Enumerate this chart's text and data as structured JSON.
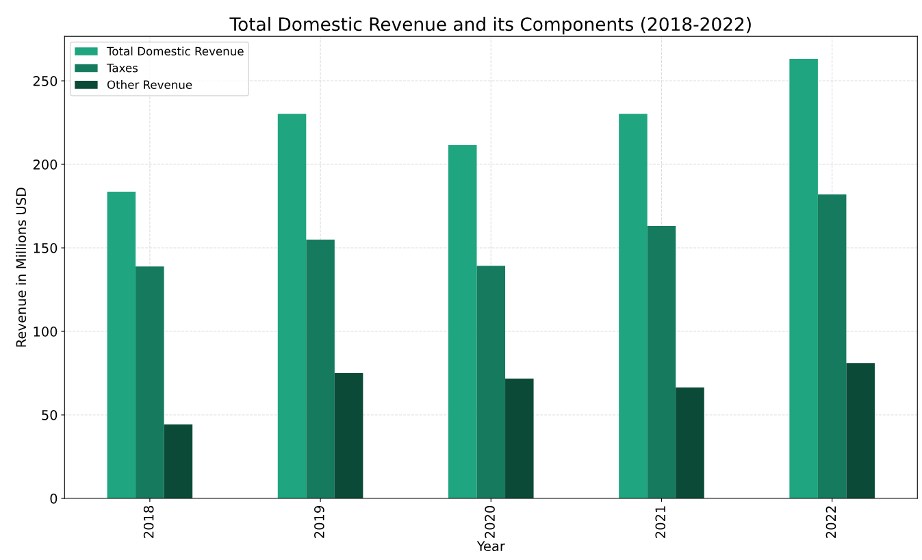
{
  "chart_data": {
    "type": "bar",
    "title": "Total Domestic Revenue and its Components (2018-2022)",
    "xlabel": "Year",
    "ylabel": "Revenue in Millions USD",
    "categories": [
      "2018",
      "2019",
      "2020",
      "2021",
      "2022"
    ],
    "series": [
      {
        "name": "Total Domestic Revenue",
        "color": "#1fa57f",
        "values": [
          183.6,
          230.3,
          211.5,
          230.3,
          263.1
        ]
      },
      {
        "name": "Taxes",
        "color": "#167a5f",
        "values": [
          138.9,
          154.9,
          139.3,
          163.1,
          182.0
        ]
      },
      {
        "name": "Other Revenue",
        "color": "#0a4a37",
        "values": [
          44.3,
          75.0,
          71.7,
          66.4,
          81.1
        ]
      }
    ],
    "ylim": [
      0,
      276.6
    ],
    "yticks": [
      0,
      50,
      100,
      150,
      200,
      250
    ],
    "grid": true,
    "legend": "top left"
  }
}
